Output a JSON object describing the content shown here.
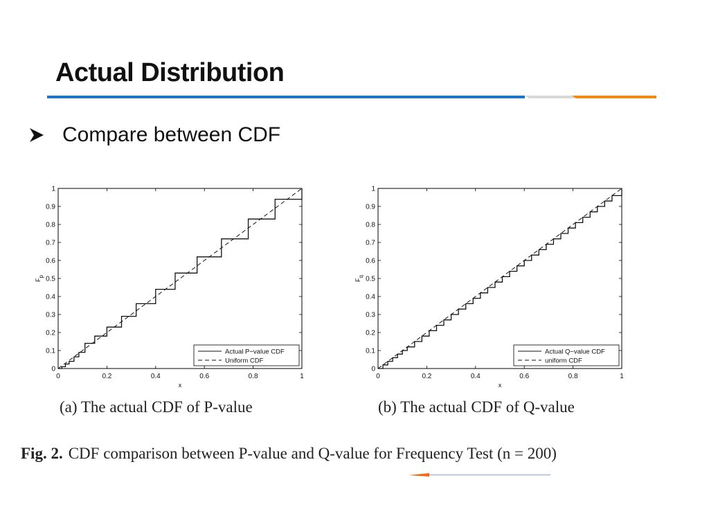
{
  "slide": {
    "title": "Actual Distribution",
    "bullet": "Compare between CDF"
  },
  "colors": {
    "rule_blue": "#1f74c4",
    "rule_grey": "#d8d8d8",
    "rule_orange": "#ef8a17",
    "bullet_mark": "#111111"
  },
  "icons": {
    "bullet": "arrowhead-bullet-icon"
  },
  "figure": {
    "label": "Fig. 2.",
    "caption": "CDF comparison between P-value and Q-value for Frequency Test (n = 200)"
  },
  "chart_data": [
    {
      "type": "line",
      "caption": "(a) The actual CDF of P-value",
      "xlabel": "x",
      "ylabel": "F",
      "ylabel_sub": "p",
      "xlim": [
        0,
        1
      ],
      "ylim": [
        0,
        1
      ],
      "xticks": [
        "0",
        "0.2",
        "0.4",
        "0.6",
        "0.8",
        "1"
      ],
      "yticks": [
        "0",
        "0.1",
        "0.2",
        "0.3",
        "0.4",
        "0.5",
        "0.6",
        "0.7",
        "0.8",
        "0.9",
        "1"
      ],
      "grid": false,
      "legend_position": "bottom-right",
      "series": [
        {
          "name": "Actual P−value CDF",
          "style": "solid step",
          "x": [
            0,
            0.015,
            0.03,
            0.045,
            0.065,
            0.085,
            0.11,
            0.15,
            0.2,
            0.26,
            0.32,
            0.4,
            0.48,
            0.57,
            0.67,
            0.78,
            0.89,
            1
          ],
          "y": [
            0,
            0.01,
            0.025,
            0.04,
            0.065,
            0.09,
            0.14,
            0.18,
            0.23,
            0.29,
            0.36,
            0.44,
            0.53,
            0.62,
            0.72,
            0.83,
            0.94,
            1
          ]
        },
        {
          "name": "Uniform CDF",
          "style": "dashed",
          "x": [
            0,
            1
          ],
          "y": [
            0,
            1
          ]
        }
      ]
    },
    {
      "type": "line",
      "caption": "(b) The actual CDF of Q-value",
      "xlabel": "x",
      "ylabel": "F",
      "ylabel_sub": "q",
      "xlim": [
        0,
        1
      ],
      "ylim": [
        0,
        1
      ],
      "xticks": [
        "0",
        "0.2",
        "0.4",
        "0.6",
        "0.8",
        "1"
      ],
      "yticks": [
        "0",
        "0.1",
        "0.2",
        "0.3",
        "0.4",
        "0.5",
        "0.6",
        "0.7",
        "0.8",
        "0.9",
        "1"
      ],
      "grid": false,
      "legend_position": "bottom-right",
      "series": [
        {
          "name": "Actual Q−value CDF",
          "style": "solid step",
          "x": [
            0,
            0.02,
            0.04,
            0.06,
            0.08,
            0.1,
            0.12,
            0.15,
            0.18,
            0.21,
            0.24,
            0.27,
            0.3,
            0.33,
            0.36,
            0.39,
            0.42,
            0.45,
            0.48,
            0.51,
            0.54,
            0.57,
            0.6,
            0.63,
            0.66,
            0.69,
            0.72,
            0.75,
            0.78,
            0.81,
            0.84,
            0.87,
            0.9,
            0.93,
            0.96,
            1
          ],
          "y": [
            0,
            0.02,
            0.04,
            0.06,
            0.08,
            0.1,
            0.12,
            0.15,
            0.18,
            0.21,
            0.24,
            0.27,
            0.3,
            0.33,
            0.36,
            0.39,
            0.42,
            0.45,
            0.48,
            0.51,
            0.54,
            0.57,
            0.6,
            0.63,
            0.66,
            0.69,
            0.72,
            0.75,
            0.78,
            0.81,
            0.84,
            0.87,
            0.9,
            0.93,
            0.96,
            1
          ]
        },
        {
          "name": "uniform CDF",
          "style": "dashed",
          "x": [
            0,
            1
          ],
          "y": [
            0,
            1
          ]
        }
      ]
    }
  ]
}
